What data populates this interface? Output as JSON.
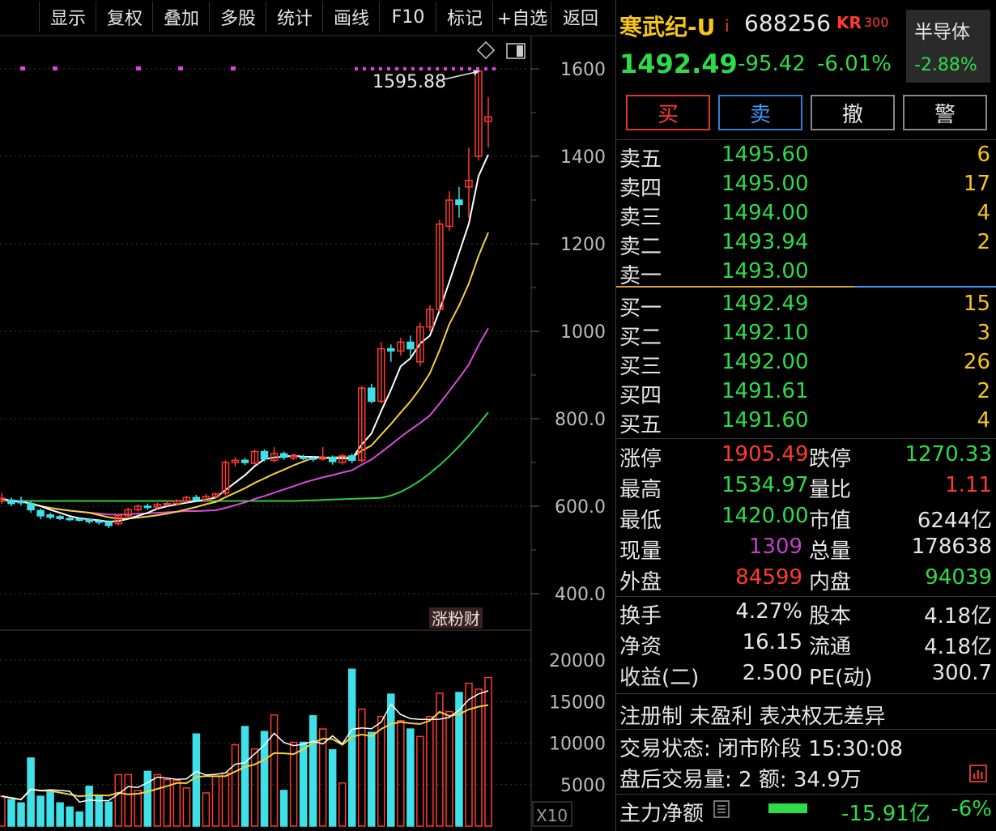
{
  "toolbar": {
    "items": [
      "显示",
      "复权",
      "叠加",
      "多股",
      "统计",
      "画线",
      "F10",
      "标记",
      "+自选",
      "返回"
    ]
  },
  "chart": {
    "y_ticks": [
      "1600",
      "1400",
      "1200",
      "1000",
      "800.0",
      "600.0",
      "400.0"
    ],
    "vol_ticks": [
      "20000",
      "15000",
      "10000",
      "5000"
    ],
    "high_label": "1595.88",
    "vol_unit": "X10",
    "badge_text": "涨粉财",
    "colors": {
      "up": "#ff3b2f",
      "down": "#3fe0e8",
      "ma5": "#ffffff",
      "ma10": "#f4d03f",
      "ma20": "#d94cd9",
      "ma60": "#2ecc40",
      "vol_ma": "#f4d03f"
    }
  },
  "header": {
    "name": "寒武纪-U",
    "name_suffix": "i",
    "code": "688256",
    "kr_badge": "KR",
    "kr_num": "300",
    "sector": "半导体",
    "sector_change": "-2.88%",
    "price": "1492.49",
    "change": "-95.42",
    "change_pct": "-6.01%"
  },
  "actions": {
    "buy": "买",
    "sell": "卖",
    "cancel": "撤",
    "alert": "警"
  },
  "order_book": {
    "asks": [
      {
        "label": "卖五",
        "price": "1495.60",
        "vol": "6"
      },
      {
        "label": "卖四",
        "price": "1495.00",
        "vol": "17"
      },
      {
        "label": "卖三",
        "price": "1494.00",
        "vol": "4"
      },
      {
        "label": "卖二",
        "price": "1493.94",
        "vol": "2"
      },
      {
        "label": "卖一",
        "price": "1493.00",
        "vol": ""
      }
    ],
    "bids": [
      {
        "label": "买一",
        "price": "1492.49",
        "vol": "15"
      },
      {
        "label": "买二",
        "price": "1492.10",
        "vol": "3"
      },
      {
        "label": "买三",
        "price": "1492.00",
        "vol": "26"
      },
      {
        "label": "买四",
        "price": "1491.61",
        "vol": "2"
      },
      {
        "label": "买五",
        "price": "1491.60",
        "vol": "4"
      }
    ]
  },
  "stats": {
    "limit_up_label": "涨停",
    "limit_up": "1905.49",
    "limit_down_label": "跌停",
    "limit_down": "1270.33",
    "high_label": "最高",
    "high": "1534.97",
    "vol_ratio_label": "量比",
    "vol_ratio": "1.11",
    "low_label": "最低",
    "low": "1420.00",
    "mkt_cap_label": "市值",
    "mkt_cap": "6244亿",
    "cur_vol_label": "现量",
    "cur_vol": "1309",
    "total_vol_label": "总量",
    "total_vol": "178638",
    "outer_label": "外盘",
    "outer": "84599",
    "inner_label": "内盘",
    "inner": "94039",
    "turnover_label": "换手",
    "turnover": "4.27%",
    "shares_label": "股本",
    "shares": "4.18亿",
    "nav_label": "净资",
    "nav": "16.15",
    "float_label": "流通",
    "float": "4.18亿",
    "eps_label": "收益(二)",
    "eps": "2.500",
    "pe_label": "PE(动)",
    "pe": "300.7"
  },
  "info": {
    "tags": "注册制 未盈利 表决权无差异",
    "status": "交易状态: 闭市阶段 15:30:08",
    "after_hours": "盘后交易量: 2  额: 34.9万",
    "main_flow_label": "主力净额",
    "main_flow": "-15.91亿",
    "main_flow_pct": "-6%"
  }
}
